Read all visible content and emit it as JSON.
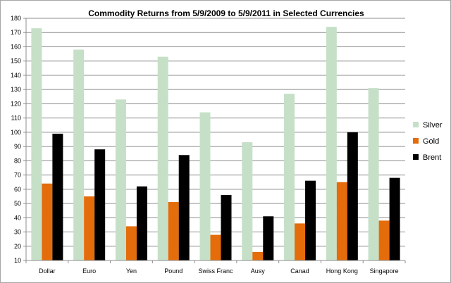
{
  "chart_data": {
    "type": "bar",
    "title": "Commodity Returns from 5/9/2009 to 5/9/2011 in Selected Currencies",
    "xlabel": "",
    "ylabel": "",
    "categories": [
      "Dollar",
      "Euro",
      "Yen",
      "Pound",
      "Swiss Franc",
      "Ausy",
      "Canad",
      "Hong Kong",
      "Singapore"
    ],
    "series": [
      {
        "name": "Silver",
        "color": "#c6e0c8",
        "values": [
          173,
          158,
          123,
          153,
          114,
          93,
          127,
          174,
          131
        ]
      },
      {
        "name": "Gold",
        "color": "#e46c0a",
        "values": [
          64,
          55,
          34,
          51,
          28,
          16,
          36,
          65,
          38
        ]
      },
      {
        "name": "Brent",
        "color": "#000000",
        "values": [
          99,
          88,
          62,
          84,
          56,
          41,
          66,
          100,
          68
        ]
      }
    ],
    "ylim": [
      10,
      180
    ],
    "yticks": [
      "10",
      "20",
      "30",
      "40",
      "50",
      "60",
      "70",
      "80",
      "90",
      "100",
      "110",
      "120",
      "130",
      "140",
      "150",
      "160",
      "170",
      "180"
    ],
    "grid": true,
    "legend_position": "right"
  }
}
